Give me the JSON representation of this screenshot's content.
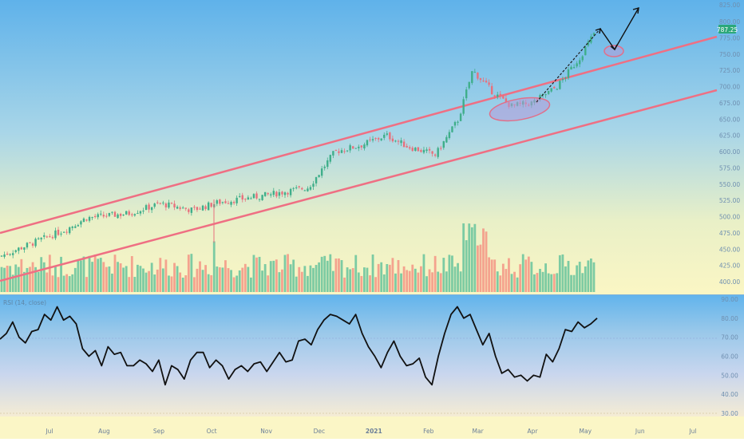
{
  "chart_data": [
    {
      "type": "candlestick",
      "title": "",
      "price_axis_ticks": [
        400,
        425,
        450,
        475,
        500,
        525,
        550,
        575,
        600,
        625,
        650,
        675,
        700,
        725,
        750,
        775,
        800
      ],
      "top_partial_label": "825.00",
      "last_price": "787.25",
      "x_labels": [
        "Jul",
        "Aug",
        "Sep",
        "Oct",
        "Nov",
        "Dec",
        "2021",
        "Feb",
        "Mar",
        "Apr",
        "May",
        "Jun",
        "Jul"
      ],
      "approx_close_path": [
        {
          "date": "2020-06-22",
          "price": 460
        },
        {
          "date": "2020-07-10",
          "price": 480
        },
        {
          "date": "2020-07-22",
          "price": 498
        },
        {
          "date": "2020-08-15",
          "price": 505
        },
        {
          "date": "2020-09-02",
          "price": 520
        },
        {
          "date": "2020-09-20",
          "price": 510
        },
        {
          "date": "2020-10-05",
          "price": 522
        },
        {
          "date": "2020-10-30",
          "price": 532
        },
        {
          "date": "2020-11-25",
          "price": 545
        },
        {
          "date": "2020-12-10",
          "price": 600
        },
        {
          "date": "2020-12-25",
          "price": 610
        },
        {
          "date": "2021-01-08",
          "price": 625
        },
        {
          "date": "2021-01-20",
          "price": 608
        },
        {
          "date": "2021-02-05",
          "price": 595
        },
        {
          "date": "2021-02-18",
          "price": 650
        },
        {
          "date": "2021-02-26",
          "price": 725
        },
        {
          "date": "2021-03-10",
          "price": 690
        },
        {
          "date": "2021-03-20",
          "price": 670
        },
        {
          "date": "2021-04-01",
          "price": 675
        },
        {
          "date": "2021-04-15",
          "price": 700
        },
        {
          "date": "2021-04-28",
          "price": 745
        },
        {
          "date": "2021-05-07",
          "price": 787.25
        }
      ]
    },
    {
      "type": "line",
      "title": "RSI (14, close)",
      "ticks": [
        "30.00",
        "40.00",
        "50.00",
        "60.00",
        "70.00",
        "80.00",
        "90.00"
      ],
      "ylim": [
        30,
        90
      ],
      "overbought": 70,
      "oversold": 30,
      "series": [
        {
          "name": "",
          "values": [
            69,
            72,
            78,
            70,
            67,
            73,
            74,
            82,
            79,
            86,
            79,
            81,
            77,
            64,
            60,
            63,
            55,
            65,
            61,
            62,
            55,
            55,
            58,
            56,
            52,
            58,
            45,
            55,
            53,
            48,
            58,
            62,
            62,
            54,
            58,
            55,
            48,
            53,
            55,
            52,
            56,
            57,
            52,
            57,
            62,
            57,
            58,
            68,
            69,
            66,
            74,
            79,
            82,
            81,
            79,
            77,
            82,
            72,
            65,
            60,
            54,
            62,
            68,
            60,
            55,
            56,
            59,
            49,
            45,
            60,
            72,
            82,
            86,
            80,
            82,
            74,
            66,
            72,
            60,
            51,
            53,
            49,
            50,
            47,
            50,
            49,
            61,
            57,
            64,
            74,
            73,
            78,
            75,
            77,
            80
          ]
        }
      ]
    }
  ],
  "legend": {
    "rsi_label": "RSI (14, close)"
  }
}
